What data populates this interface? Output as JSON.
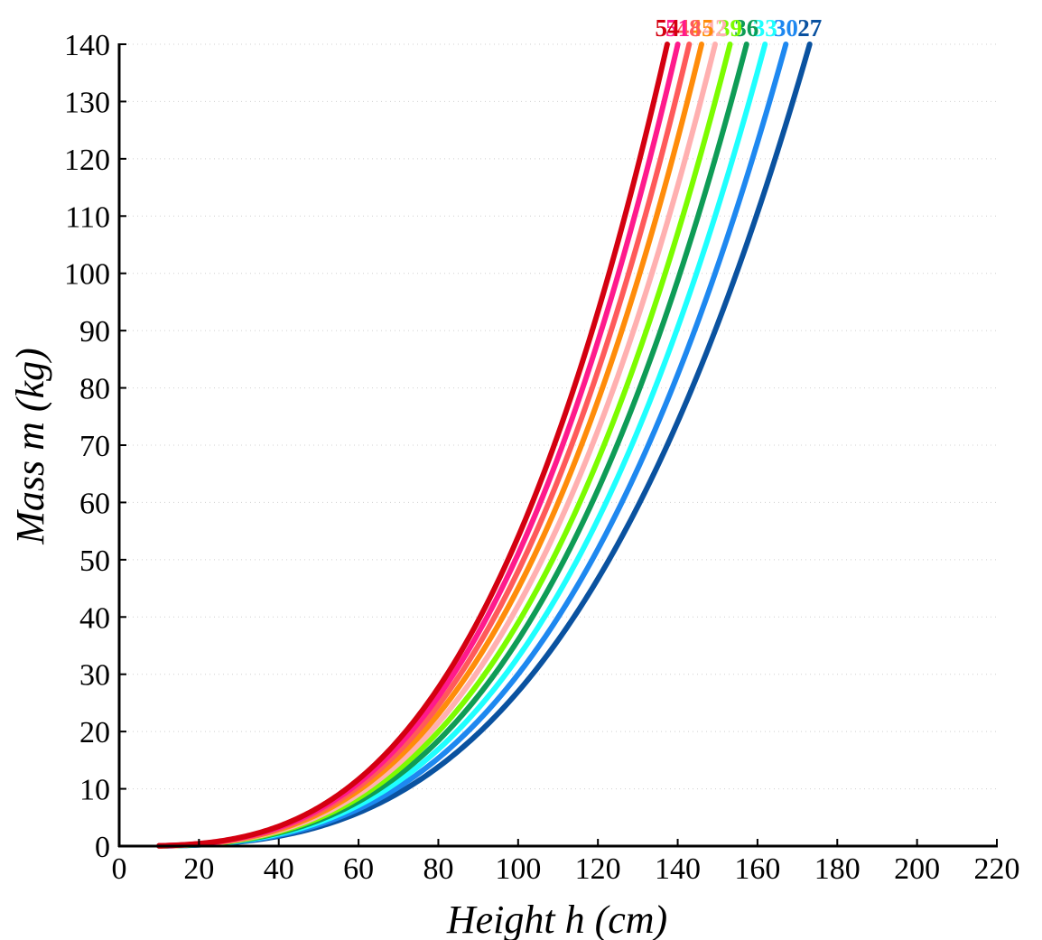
{
  "chart_data": {
    "type": "line",
    "title": "",
    "xlabel": "Height h (cm)",
    "ylabel": "Mass m (kg)",
    "xlim": [
      0,
      220
    ],
    "ylim": [
      0,
      140
    ],
    "xticks": [
      0,
      20,
      40,
      60,
      80,
      100,
      120,
      140,
      160,
      180,
      200,
      220
    ],
    "yticks": [
      0,
      10,
      20,
      30,
      40,
      50,
      60,
      70,
      80,
      90,
      100,
      110,
      120,
      130,
      140
    ],
    "grid": true,
    "legend": "none (series labels at curve ends)",
    "formula": "m = k * (h/100)^3",
    "x_range": [
      10,
      220
    ],
    "series": [
      {
        "name": "27",
        "k": 27,
        "color": "#0A52A0"
      },
      {
        "name": "30",
        "k": 30,
        "color": "#1E88F0"
      },
      {
        "name": "33",
        "k": 33,
        "color": "#1FFFFF"
      },
      {
        "name": "36",
        "k": 36,
        "color": "#0E9C56"
      },
      {
        "name": "39",
        "k": 39,
        "color": "#7CFC00"
      },
      {
        "name": "42",
        "k": 42,
        "color": "#FFB0B0"
      },
      {
        "name": "45",
        "k": 45,
        "color": "#FF8C0A"
      },
      {
        "name": "48",
        "k": 48,
        "color": "#FF5A5A"
      },
      {
        "name": "51",
        "k": 51,
        "color": "#FF1A8C"
      },
      {
        "name": "54",
        "k": 54,
        "color": "#D40010"
      }
    ]
  }
}
